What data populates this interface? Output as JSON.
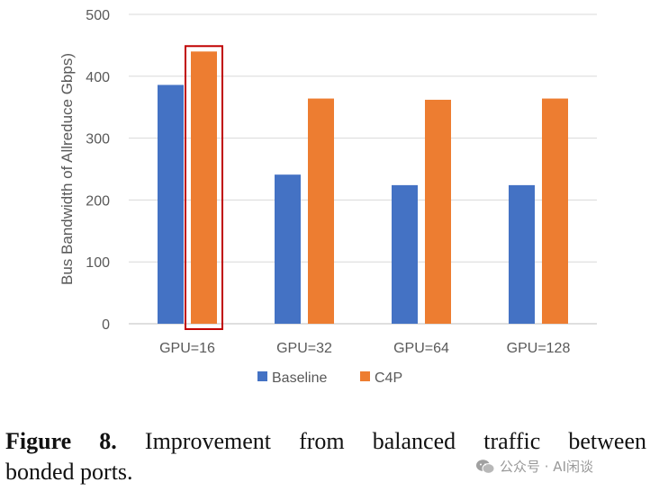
{
  "chart_data": {
    "type": "bar",
    "categories": [
      "GPU=16",
      "GPU=32",
      "GPU=64",
      "GPU=128"
    ],
    "series": [
      {
        "name": "Baseline",
        "color": "#4472C4",
        "values": [
          386,
          241,
          224,
          224
        ]
      },
      {
        "name": "C4P",
        "color": "#ED7D31",
        "values": [
          440,
          364,
          362,
          364
        ]
      }
    ],
    "ylabel": "Bus Bandwidth of Allreduce Gbps)",
    "xlabel": "",
    "ylim": [
      0,
      500
    ],
    "yticks": [
      "0",
      "100",
      "200",
      "300",
      "400",
      "500"
    ],
    "grid": true,
    "legend_position": "bottom",
    "highlight": {
      "category": "GPU=16",
      "series": "C4P",
      "color": "#C00000"
    }
  },
  "caption": {
    "label": "Figure 8.",
    "line1": "Improvement from balanced traffic between",
    "line2": "bonded ports."
  },
  "watermark": {
    "text": "公众号 · AI闲谈",
    "icon": "wechat-icon"
  }
}
